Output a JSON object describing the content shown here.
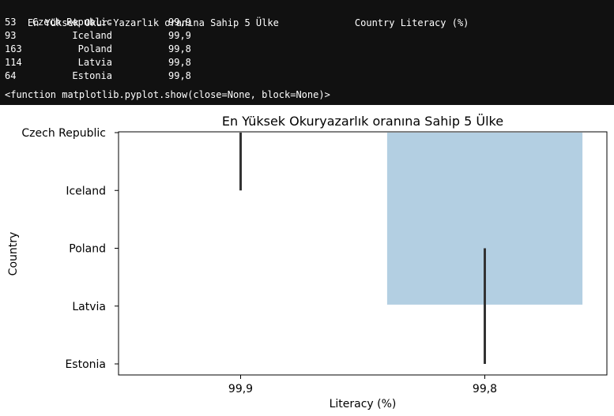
{
  "console": {
    "header_title": "En Yüksek Okur-Yazarlık oranına Sahip 5 Ülke",
    "header_columns": "Country Literacy (%)",
    "rows": [
      {
        "index": "53",
        "country": "Czech Republic",
        "literacy": "99,9"
      },
      {
        "index": "93",
        "country": "Iceland",
        "literacy": "99,9"
      },
      {
        "index": "163",
        "country": "Poland",
        "literacy": "99,8"
      },
      {
        "index": "114",
        "country": "Latvia",
        "literacy": "99,8"
      },
      {
        "index": "64",
        "country": "Estonia",
        "literacy": "99,8"
      }
    ],
    "repr_line": "<function matplotlib.pyplot.show(close=None, block=None)>"
  },
  "chart_data": {
    "type": "bar",
    "orientation": "horizontal",
    "title": "En Yüksek Okuryazarlık oranına Sahip 5 Ülke",
    "xlabel": "Literacy (%)",
    "ylabel": "Country",
    "x_categories": [
      "99,9",
      "99,8"
    ],
    "y_categories": [
      "Czech Republic",
      "Iceland",
      "Poland",
      "Latvia",
      "Estonia"
    ],
    "bars": [
      {
        "category": "99,9",
        "y_start": -0.5,
        "y_end": -0.025,
        "error_bar": [
          0,
          1
        ],
        "color": "#4682b4"
      },
      {
        "category": "99,8",
        "y_start": -0.5,
        "y_end": 2.975,
        "error_bar": [
          2,
          4
        ],
        "color": "#b3cfe2"
      }
    ],
    "error_bar_color": "#333333",
    "grid": false,
    "legend": "none"
  }
}
